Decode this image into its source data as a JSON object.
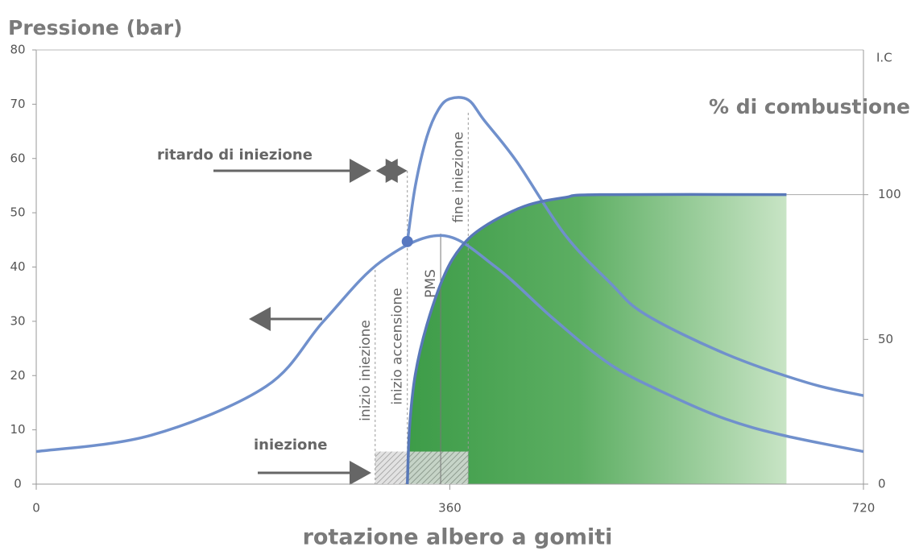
{
  "chart_data": {
    "type": "line",
    "y_label": "Pressione (bar)",
    "y2_label": "% di combustione",
    "y2_top_label": "I.C",
    "x_label": "rotazione albero a gomiti",
    "xlim": [
      0,
      720
    ],
    "xticks": [
      0,
      360,
      720
    ],
    "ylim": [
      0,
      80
    ],
    "yticks": [
      0,
      10,
      20,
      30,
      40,
      50,
      60,
      70,
      80
    ],
    "y2lim": [
      0,
      150
    ],
    "y2ticks": [
      0,
      50,
      100
    ],
    "series": [
      {
        "color": "#7090cc",
        "axis": "y",
        "x": [
          0,
          100,
          200,
          250,
          300,
          353,
          400,
          450,
          500,
          550,
          600,
          650,
          720
        ],
        "values": [
          6,
          9,
          18,
          30,
          41,
          45.8,
          40,
          30.5,
          22,
          16.5,
          12,
          9,
          6
        ]
      },
      {
        "color": "#7090cc",
        "axis": "y",
        "x": [
          323,
          330,
          340,
          350,
          360,
          376,
          390,
          418,
          460,
          500,
          530,
          600,
          671,
          720
        ],
        "values": [
          44.7,
          55,
          64,
          69,
          71,
          70.8,
          67,
          59.5,
          46,
          37,
          31.3,
          24,
          18.7,
          16.3
        ]
      },
      {
        "color": "#5878b8",
        "axis": "y2",
        "fill": true,
        "x": [
          323,
          325,
          330,
          340,
          355,
          370,
          390,
          425,
          460,
          490,
          653
        ],
        "values": [
          0,
          20,
          38,
          55,
          72,
          82,
          89,
          96,
          99,
          100,
          100
        ]
      }
    ],
    "events": [
      {
        "label": "inizio iniezione",
        "x": 295
      },
      {
        "label": "inizio accensione",
        "x": 323
      },
      {
        "label": "PMS",
        "x": 352
      },
      {
        "label": "fine iniezione",
        "x": 376
      }
    ],
    "injection": {
      "label": "iniezione",
      "x": [
        295,
        376
      ],
      "value": 6
    },
    "delay_label": "ritardo di iniezione"
  }
}
